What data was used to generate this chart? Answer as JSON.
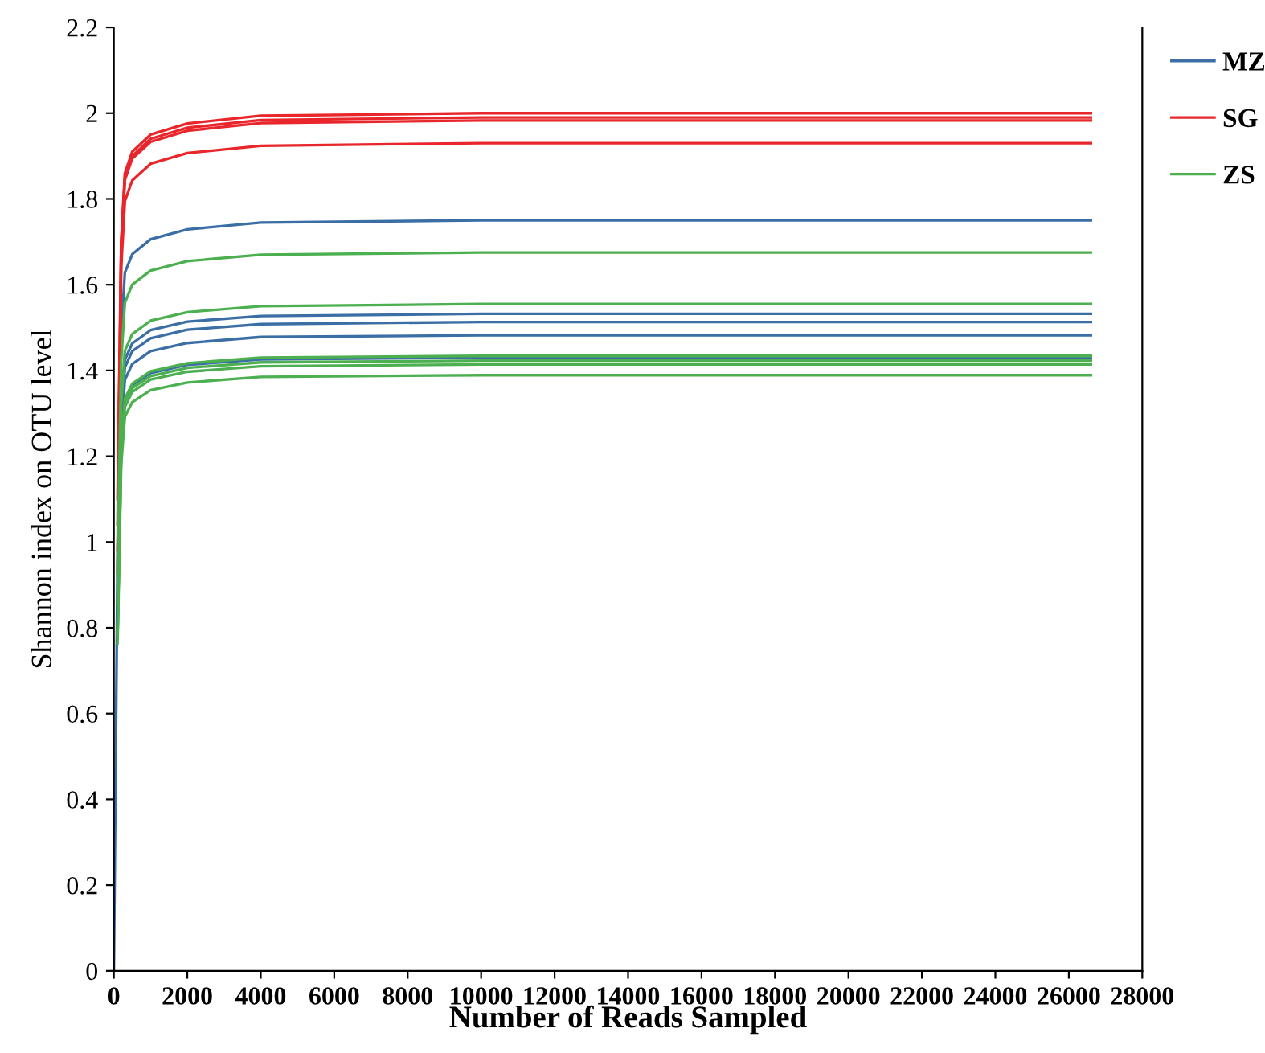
{
  "chart_data": {
    "type": "line",
    "xlabel": "Number of Reads Sampled",
    "ylabel": "Shannon index on OTU level",
    "x": [
      0,
      100,
      200,
      300,
      500,
      1000,
      2000,
      4000,
      10000,
      26600
    ],
    "series": [
      {
        "name": "MZ",
        "color": "#3a6ea5",
        "values": [
          0,
          0.963,
          1.488,
          1.628,
          1.671,
          1.706,
          1.729,
          1.745,
          1.75,
          1.75
        ]
      },
      {
        "color": "#3a6ea5",
        "values": [
          null,
          0.843,
          1.302,
          1.425,
          1.463,
          1.494,
          1.514,
          1.527,
          1.532,
          1.532
        ]
      },
      {
        "color": "#3a6ea5",
        "values": [
          null,
          0.832,
          1.286,
          1.407,
          1.445,
          1.475,
          1.495,
          1.508,
          1.513,
          1.513
        ]
      },
      {
        "color": "#3a6ea5",
        "values": [
          null,
          0.815,
          1.26,
          1.378,
          1.415,
          1.445,
          1.464,
          1.478,
          1.482,
          1.482
        ]
      },
      {
        "color": "#3a6ea5",
        "values": [
          null,
          null,
          1.216,
          1.33,
          1.366,
          1.394,
          1.413,
          1.426,
          1.43,
          1.43
        ]
      },
      {
        "name": "SG",
        "color": "#e8262b",
        "values": [
          null,
          1.1,
          1.7,
          1.86,
          1.91,
          1.95,
          1.976,
          1.994,
          2.0,
          2.0
        ]
      },
      {
        "color": "#e8262b",
        "values": [
          null,
          1.04,
          1.692,
          1.851,
          1.9,
          1.94,
          1.966,
          1.984,
          1.99,
          1.99
        ]
      },
      {
        "color": "#e8262b",
        "values": [
          null,
          0.98,
          1.686,
          1.844,
          1.894,
          1.933,
          1.959,
          1.977,
          1.983,
          1.983
        ]
      },
      {
        "color": "#e8262b",
        "values": [
          null,
          0.93,
          1.641,
          1.795,
          1.843,
          1.882,
          1.907,
          1.924,
          1.93,
          1.93
        ]
      },
      {
        "name": "ZS",
        "color": "#4caf50",
        "values": [
          null,
          0.921,
          1.424,
          1.558,
          1.6,
          1.633,
          1.655,
          1.67,
          1.675,
          1.675
        ]
      },
      {
        "color": "#4caf50",
        "values": [
          null,
          0.855,
          1.322,
          1.446,
          1.485,
          1.516,
          1.536,
          1.55,
          1.555,
          1.555
        ]
      },
      {
        "color": "#4caf50",
        "values": [
          null,
          0.789,
          1.219,
          1.334,
          1.369,
          1.398,
          1.417,
          1.43,
          1.434,
          1.434
        ]
      },
      {
        "color": "#4caf50",
        "values": [
          null,
          0.783,
          1.21,
          1.323,
          1.359,
          1.387,
          1.406,
          1.419,
          1.423,
          1.423
        ]
      },
      {
        "color": "#4caf50",
        "values": [
          null,
          0.778,
          1.202,
          1.315,
          1.35,
          1.379,
          1.397,
          1.41,
          1.414,
          1.414
        ]
      },
      {
        "color": "#4caf50",
        "values": [
          null,
          0.764,
          1.181,
          1.292,
          1.326,
          1.354,
          1.372,
          1.385,
          1.389,
          1.389
        ]
      }
    ],
    "xlim": [
      0,
      28000
    ],
    "xticks": [
      0,
      2000,
      4000,
      6000,
      8000,
      10000,
      12000,
      14000,
      16000,
      18000,
      20000,
      22000,
      24000,
      26000,
      28000
    ],
    "ylim": [
      0,
      2.2
    ],
    "yticks": [
      0,
      0.2,
      0.4,
      0.6,
      0.8,
      1,
      1.2,
      1.4,
      1.6,
      1.8,
      2,
      2.2
    ],
    "grid": false,
    "legend": "top right",
    "marker": "none",
    "line_style": "solid"
  }
}
